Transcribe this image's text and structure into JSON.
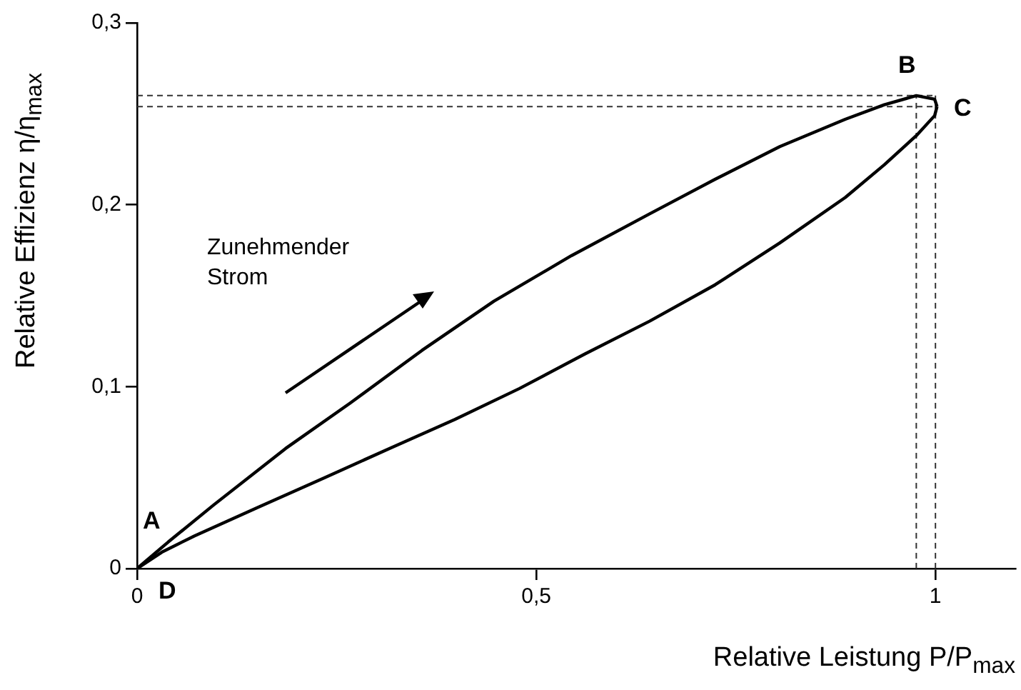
{
  "chart_data": {
    "type": "line",
    "xlabel": "Relative Leistung P/P$_{max}$",
    "ylabel": "Relative Effizienz η/η$_{max}$",
    "xlim": [
      0,
      1.1
    ],
    "ylim": [
      0,
      0.3
    ],
    "xticks": [
      0,
      {
        "value": 0.5,
        "label": "0,5"
      },
      1
    ],
    "yticks": [
      0,
      {
        "value": 0.1,
        "label": "0,1"
      },
      {
        "value": 0.2,
        "label": "0,2"
      },
      {
        "value": 0.3,
        "label": "0,3"
      }
    ],
    "marker": "none",
    "line_style": "solid",
    "series": [
      {
        "color": "#000000",
        "x": [
          0,
          0.039,
          0.096,
          0.186,
          0.267,
          0.357,
          0.447,
          0.544,
          0.642,
          0.724,
          0.805,
          0.887,
          0.936,
          0.976,
          0.999,
          1.002
        ],
        "values": [
          0,
          0.0146,
          0.035,
          0.066,
          0.091,
          0.12,
          0.147,
          0.172,
          0.195,
          0.214,
          0.232,
          0.247,
          0.255,
          0.26,
          0.258,
          0.254
        ]
      },
      {
        "color": "#000000",
        "x": [
          0,
          0.031,
          0.072,
          0.153,
          0.235,
          0.316,
          0.398,
          0.479,
          0.561,
          0.642,
          0.724,
          0.805,
          0.887,
          0.936,
          0.976,
          0.999,
          1.002
        ],
        "values": [
          0,
          0.009,
          0.018,
          0.034,
          0.05,
          0.066,
          0.082,
          0.099,
          0.118,
          0.136,
          0.156,
          0.179,
          0.204,
          0.222,
          0.238,
          0.249,
          0.254
        ]
      }
    ],
    "ref_lines": [
      {
        "axis": "x",
        "value": 0.976,
        "line_style": "dashed",
        "color": "#333333"
      },
      {
        "axis": "x",
        "value": 1,
        "line_style": "dashed",
        "color": "#333333"
      },
      {
        "axis": "y",
        "value": 0.26,
        "line_style": "dashed",
        "color": "#333333"
      },
      {
        "axis": "y",
        "value": 0.254,
        "line_style": "dashed",
        "color": "#333333"
      }
    ],
    "annotations": [
      "A",
      "B",
      "C",
      "D",
      "Zunehmender\nStrom"
    ]
  }
}
